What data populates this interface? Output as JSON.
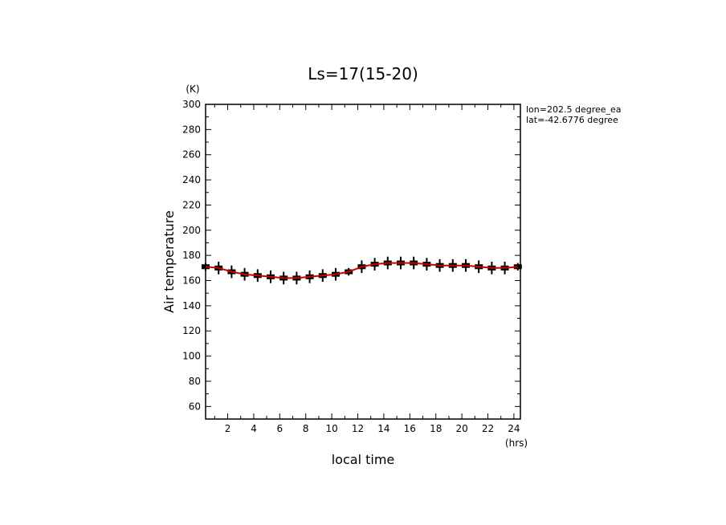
{
  "chart_data": {
    "type": "line",
    "title": "Ls=17(15-20)",
    "xlabel": "local time",
    "ylabel": "Air temperature",
    "x_unit": "(hrs)",
    "y_unit": "(K)",
    "annotations": [
      "lon=202.5 degree_ea",
      "lat=-42.6776 degree"
    ],
    "xlim": [
      0.3,
      24.5
    ],
    "ylim": [
      50,
      300
    ],
    "x_ticks": [
      2,
      4,
      6,
      8,
      10,
      12,
      14,
      16,
      18,
      20,
      22,
      24
    ],
    "y_ticks": [
      60,
      80,
      100,
      120,
      140,
      160,
      180,
      200,
      220,
      240,
      260,
      280,
      300
    ],
    "grid": false,
    "series": [
      {
        "color": "#cc0000",
        "x": [
          0.3,
          1.3,
          2.3,
          3.3,
          4.3,
          5.3,
          6.3,
          7.3,
          8.3,
          9.3,
          10.3,
          11.3,
          12.3,
          13.3,
          14.3,
          15.3,
          16.3,
          17.3,
          18.3,
          19.3,
          20.3,
          21.3,
          22.3,
          23.3,
          24.3
        ],
        "y": [
          171,
          170,
          167,
          165,
          164,
          163,
          162,
          162,
          163,
          164,
          165,
          167,
          171,
          173,
          174,
          174,
          174,
          173,
          172,
          172,
          172,
          171,
          170,
          170,
          171
        ]
      },
      {
        "color": "#000000",
        "marker": "error-bar",
        "x": [
          0.3,
          1.3,
          2.3,
          3.3,
          4.3,
          5.3,
          6.3,
          7.3,
          8.3,
          9.3,
          10.3,
          11.3,
          12.3,
          13.3,
          14.3,
          15.3,
          16.3,
          17.3,
          18.3,
          19.3,
          20.3,
          21.3,
          22.3,
          23.3,
          24.3
        ],
        "y": [
          171,
          170,
          167,
          165,
          164,
          163,
          162,
          162,
          163,
          164,
          165,
          167,
          171,
          173,
          174,
          174,
          174,
          173,
          172,
          172,
          172,
          171,
          170,
          170,
          171
        ],
        "err": [
          3,
          5,
          5,
          5,
          5,
          5,
          5,
          5,
          5,
          5,
          5,
          3,
          5,
          5,
          5,
          5,
          5,
          5,
          5,
          5,
          5,
          5,
          5,
          5,
          3
        ]
      }
    ]
  }
}
